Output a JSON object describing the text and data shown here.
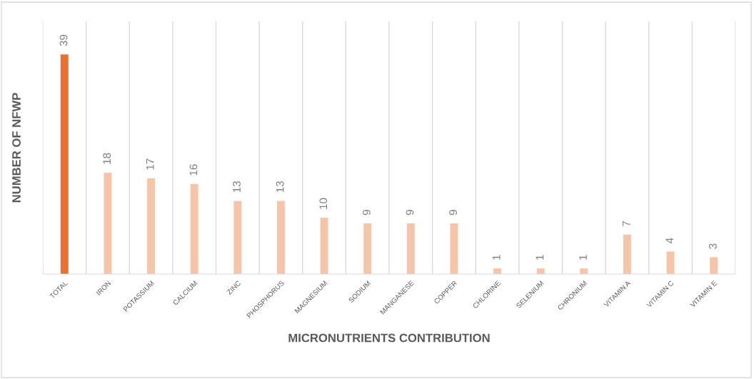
{
  "chart_data": {
    "type": "bar",
    "xlabel": "MICRONUTRIENTS CONTRIBUTION",
    "ylabel": "NUMBER OF NFWP",
    "categories": [
      "TOTAL",
      "IRON",
      "POTASSIUM",
      "CALCIUM",
      "ZINC",
      "PHOSPHORUS",
      "MAGNESIUM",
      "SODIUM",
      "MANGANESE",
      "COPPER",
      "CHLORINE",
      "SELENIUM",
      "CHRONIUM",
      "VITAMIN A",
      "VITAMIN C",
      "VITAMIN E"
    ],
    "values": [
      39,
      18,
      17,
      16,
      13,
      13,
      10,
      9,
      9,
      9,
      1,
      1,
      1,
      7,
      4,
      3
    ],
    "colors": [
      "#e97132",
      "#f6c5a9",
      "#f6c5a9",
      "#f6c5a9",
      "#f6c5a9",
      "#f6c5a9",
      "#f6c5a9",
      "#f6c5a9",
      "#f6c5a9",
      "#f6c5a9",
      "#f6c5a9",
      "#f6c5a9",
      "#f6c5a9",
      "#f6c5a9",
      "#f6c5a9",
      "#f6c5a9"
    ],
    "data_labels": true,
    "grid": "x",
    "tick_labels": "x"
  }
}
